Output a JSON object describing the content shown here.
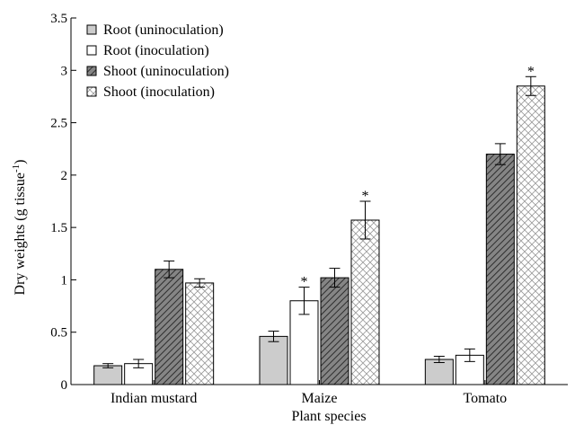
{
  "chart_data": {
    "type": "bar",
    "title": "",
    "xlabel": "Plant species",
    "ylabel": "Dry weights (g tissue",
    "ylabel_superscript": "-1",
    "ylabel_suffix": ")",
    "ylim": [
      0,
      3.5
    ],
    "yticks": [
      "0",
      "0.5",
      "1",
      "1.5",
      "2",
      "2.5",
      "3",
      "3.5"
    ],
    "categories": [
      "Indian mustard",
      "Maize",
      "Tomato"
    ],
    "legend_position": "top-left",
    "series": [
      {
        "name": "Root (uninoculation)",
        "pattern": "solid-gray",
        "values": [
          0.18,
          0.46,
          0.24
        ],
        "errors": [
          0.02,
          0.05,
          0.03
        ],
        "significant": [
          false,
          false,
          false
        ]
      },
      {
        "name": "Root (inoculation)",
        "pattern": "white",
        "values": [
          0.2,
          0.8,
          0.28
        ],
        "errors": [
          0.04,
          0.13,
          0.06
        ],
        "significant": [
          false,
          true,
          false
        ]
      },
      {
        "name": "Shoot (uninoculation)",
        "pattern": "diagonal-hatch",
        "values": [
          1.1,
          1.02,
          2.2
        ],
        "errors": [
          0.08,
          0.09,
          0.1
        ],
        "significant": [
          false,
          false,
          false
        ]
      },
      {
        "name": "Shoot (inoculation)",
        "pattern": "cross-hatch",
        "values": [
          0.97,
          1.57,
          2.85
        ],
        "errors": [
          0.04,
          0.18,
          0.09
        ],
        "significant": [
          false,
          true,
          true
        ]
      }
    ],
    "significance_marker": "*",
    "colors": {
      "solid-gray": "#cccccc",
      "white": "#ffffff",
      "diagonal-hatch": "#7a7a7a",
      "cross-hatch": "#ffffff",
      "stroke": "#000000"
    }
  }
}
